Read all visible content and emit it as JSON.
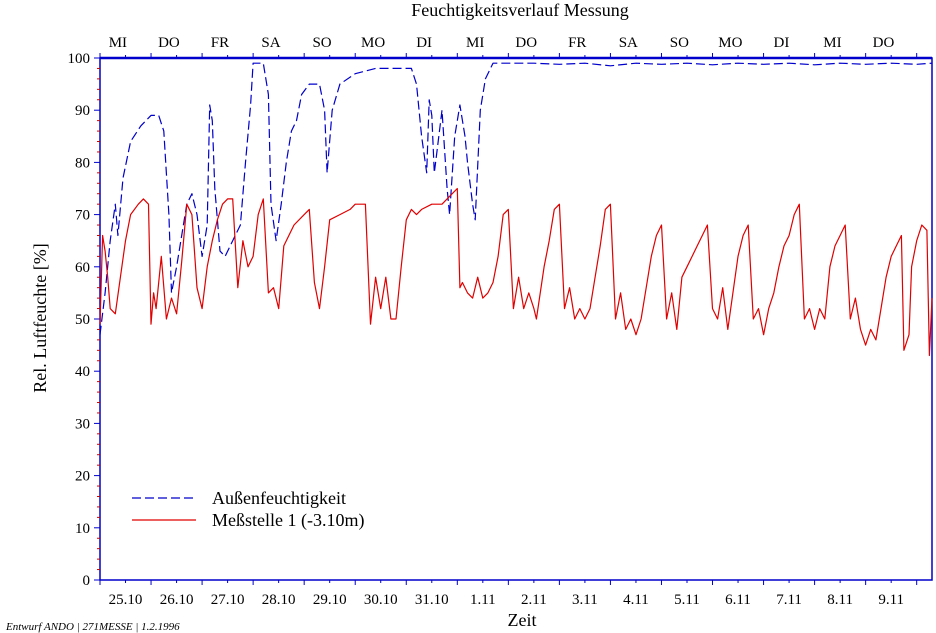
{
  "chart_data": {
    "type": "line",
    "title": "Feuchtigkeitsverlauf Messung",
    "xlabel": "Zeit",
    "ylabel": "Rel. Luftfeuchte [%]",
    "ylim": [
      0,
      100
    ],
    "xlim": [
      0,
      16.3
    ],
    "yticks": [
      0,
      10,
      20,
      30,
      40,
      50,
      60,
      70,
      80,
      90,
      100
    ],
    "top_day_labels": [
      {
        "day": 0.35,
        "label": "MI"
      },
      {
        "day": 1.35,
        "label": "DO"
      },
      {
        "day": 2.35,
        "label": "FR"
      },
      {
        "day": 3.35,
        "label": "SA"
      },
      {
        "day": 4.35,
        "label": "SO"
      },
      {
        "day": 5.35,
        "label": "MO"
      },
      {
        "day": 6.35,
        "label": "DI"
      },
      {
        "day": 7.35,
        "label": "MI"
      },
      {
        "day": 8.35,
        "label": "DO"
      },
      {
        "day": 9.35,
        "label": "FR"
      },
      {
        "day": 10.35,
        "label": "SA"
      },
      {
        "day": 11.35,
        "label": "SO"
      },
      {
        "day": 12.35,
        "label": "MO"
      },
      {
        "day": 13.35,
        "label": "DI"
      },
      {
        "day": 14.35,
        "label": "MI"
      },
      {
        "day": 15.35,
        "label": "DO"
      }
    ],
    "bottom_date_labels": [
      {
        "day": 0.5,
        "label": "25.10"
      },
      {
        "day": 1.5,
        "label": "26.10"
      },
      {
        "day": 2.5,
        "label": "27.10"
      },
      {
        "day": 3.5,
        "label": "28.10"
      },
      {
        "day": 4.5,
        "label": "29.10"
      },
      {
        "day": 5.5,
        "label": "30.10"
      },
      {
        "day": 6.5,
        "label": "31.10"
      },
      {
        "day": 7.5,
        "label": "1.11"
      },
      {
        "day": 8.5,
        "label": "2.11"
      },
      {
        "day": 9.5,
        "label": "3.11"
      },
      {
        "day": 10.5,
        "label": "4.11"
      },
      {
        "day": 11.5,
        "label": "5.11"
      },
      {
        "day": 12.5,
        "label": "6.11"
      },
      {
        "day": 13.5,
        "label": "7.11"
      },
      {
        "day": 14.5,
        "label": "8.11"
      },
      {
        "day": 15.5,
        "label": "9.11"
      }
    ],
    "legend_position": "bottom-left",
    "series": [
      {
        "name": "Außenfeuchtigkeit",
        "color": "#0000cc",
        "dash": "dashed",
        "points": [
          [
            0.0,
            47
          ],
          [
            0.1,
            55
          ],
          [
            0.2,
            65
          ],
          [
            0.3,
            72
          ],
          [
            0.35,
            66
          ],
          [
            0.45,
            77
          ],
          [
            0.6,
            84
          ],
          [
            0.8,
            87
          ],
          [
            1.0,
            89
          ],
          [
            1.15,
            89
          ],
          [
            1.25,
            86
          ],
          [
            1.35,
            70
          ],
          [
            1.4,
            55
          ],
          [
            1.5,
            60
          ],
          [
            1.6,
            66
          ],
          [
            1.7,
            72
          ],
          [
            1.8,
            74
          ],
          [
            1.9,
            70
          ],
          [
            2.0,
            62
          ],
          [
            2.1,
            68
          ],
          [
            2.15,
            91
          ],
          [
            2.2,
            88
          ],
          [
            2.25,
            75
          ],
          [
            2.35,
            63
          ],
          [
            2.45,
            62
          ],
          [
            2.6,
            65
          ],
          [
            2.75,
            68
          ],
          [
            2.85,
            80
          ],
          [
            2.95,
            91
          ],
          [
            3.0,
            99
          ],
          [
            3.1,
            99
          ],
          [
            3.2,
            99
          ],
          [
            3.3,
            93
          ],
          [
            3.35,
            72
          ],
          [
            3.45,
            65
          ],
          [
            3.55,
            72
          ],
          [
            3.65,
            80
          ],
          [
            3.75,
            86
          ],
          [
            3.85,
            88
          ],
          [
            3.95,
            93
          ],
          [
            4.1,
            95
          ],
          [
            4.3,
            95
          ],
          [
            4.4,
            90
          ],
          [
            4.45,
            78
          ],
          [
            4.55,
            90
          ],
          [
            4.7,
            95
          ],
          [
            5.0,
            97
          ],
          [
            5.4,
            98
          ],
          [
            5.8,
            98
          ],
          [
            6.1,
            98
          ],
          [
            6.2,
            95
          ],
          [
            6.3,
            85
          ],
          [
            6.4,
            78
          ],
          [
            6.45,
            92
          ],
          [
            6.5,
            89
          ],
          [
            6.55,
            78
          ],
          [
            6.6,
            82
          ],
          [
            6.7,
            90
          ],
          [
            6.8,
            75
          ],
          [
            6.85,
            70
          ],
          [
            6.95,
            85
          ],
          [
            7.05,
            91
          ],
          [
            7.15,
            85
          ],
          [
            7.2,
            80
          ],
          [
            7.3,
            72
          ],
          [
            7.35,
            69
          ],
          [
            7.45,
            90
          ],
          [
            7.55,
            96
          ],
          [
            7.7,
            99
          ],
          [
            8.0,
            99
          ],
          [
            8.5,
            99
          ],
          [
            9.0,
            98.8
          ],
          [
            9.5,
            99
          ],
          [
            10.0,
            98.5
          ],
          [
            10.5,
            99
          ],
          [
            11.0,
            98.8
          ],
          [
            11.5,
            99
          ],
          [
            12.0,
            98.7
          ],
          [
            12.5,
            99
          ],
          [
            13.0,
            98.8
          ],
          [
            13.5,
            99
          ],
          [
            14.0,
            98.7
          ],
          [
            14.5,
            99
          ],
          [
            15.0,
            98.8
          ],
          [
            15.5,
            99
          ],
          [
            16.0,
            98.8
          ],
          [
            16.3,
            99
          ]
        ]
      },
      {
        "name": "Meßstelle 1 (-3.10m)",
        "color": "#e00000",
        "dash": "solid",
        "points": [
          [
            0.0,
            49
          ],
          [
            0.05,
            66
          ],
          [
            0.1,
            63
          ],
          [
            0.15,
            58
          ],
          [
            0.2,
            52
          ],
          [
            0.3,
            51
          ],
          [
            0.4,
            58
          ],
          [
            0.5,
            65
          ],
          [
            0.6,
            70
          ],
          [
            0.75,
            72
          ],
          [
            0.85,
            73
          ],
          [
            0.95,
            72
          ],
          [
            1.0,
            49
          ],
          [
            1.05,
            55
          ],
          [
            1.1,
            52
          ],
          [
            1.2,
            62
          ],
          [
            1.3,
            50
          ],
          [
            1.4,
            54
          ],
          [
            1.5,
            51
          ],
          [
            1.6,
            61
          ],
          [
            1.7,
            72
          ],
          [
            1.8,
            70
          ],
          [
            1.9,
            56
          ],
          [
            2.0,
            52
          ],
          [
            2.1,
            60
          ],
          [
            2.2,
            65
          ],
          [
            2.3,
            69
          ],
          [
            2.4,
            72
          ],
          [
            2.5,
            73
          ],
          [
            2.6,
            73
          ],
          [
            2.7,
            56
          ],
          [
            2.8,
            65
          ],
          [
            2.9,
            60
          ],
          [
            3.0,
            62
          ],
          [
            3.1,
            70
          ],
          [
            3.2,
            73
          ],
          [
            3.3,
            55
          ],
          [
            3.4,
            56
          ],
          [
            3.5,
            52
          ],
          [
            3.6,
            64
          ],
          [
            3.8,
            68
          ],
          [
            4.0,
            70
          ],
          [
            4.1,
            71
          ],
          [
            4.2,
            57
          ],
          [
            4.3,
            52
          ],
          [
            4.4,
            60
          ],
          [
            4.5,
            69
          ],
          [
            4.7,
            70
          ],
          [
            4.9,
            71
          ],
          [
            5.0,
            72
          ],
          [
            5.2,
            72
          ],
          [
            5.3,
            49
          ],
          [
            5.4,
            58
          ],
          [
            5.5,
            52
          ],
          [
            5.6,
            58
          ],
          [
            5.7,
            50
          ],
          [
            5.8,
            50
          ],
          [
            5.9,
            60
          ],
          [
            6.0,
            69
          ],
          [
            6.1,
            71
          ],
          [
            6.2,
            70
          ],
          [
            6.3,
            71
          ],
          [
            6.5,
            72
          ],
          [
            6.7,
            72
          ],
          [
            6.9,
            74
          ],
          [
            7.0,
            75
          ],
          [
            7.05,
            56
          ],
          [
            7.1,
            57
          ],
          [
            7.2,
            55
          ],
          [
            7.3,
            54
          ],
          [
            7.4,
            58
          ],
          [
            7.5,
            54
          ],
          [
            7.6,
            55
          ],
          [
            7.7,
            57
          ],
          [
            7.8,
            62
          ],
          [
            7.9,
            70
          ],
          [
            8.0,
            71
          ],
          [
            8.1,
            52
          ],
          [
            8.2,
            58
          ],
          [
            8.3,
            52
          ],
          [
            8.4,
            55
          ],
          [
            8.5,
            52
          ],
          [
            8.55,
            50
          ],
          [
            8.7,
            60
          ],
          [
            8.8,
            65
          ],
          [
            8.9,
            71
          ],
          [
            9.0,
            72
          ],
          [
            9.1,
            52
          ],
          [
            9.2,
            56
          ],
          [
            9.3,
            50
          ],
          [
            9.4,
            52
          ],
          [
            9.5,
            50
          ],
          [
            9.6,
            52
          ],
          [
            9.7,
            58
          ],
          [
            9.8,
            64
          ],
          [
            9.9,
            71
          ],
          [
            10.0,
            72
          ],
          [
            10.1,
            50
          ],
          [
            10.2,
            55
          ],
          [
            10.3,
            48
          ],
          [
            10.4,
            50
          ],
          [
            10.5,
            47
          ],
          [
            10.6,
            50
          ],
          [
            10.7,
            56
          ],
          [
            10.8,
            62
          ],
          [
            10.9,
            66
          ],
          [
            11.0,
            68
          ],
          [
            11.1,
            50
          ],
          [
            11.2,
            55
          ],
          [
            11.3,
            48
          ],
          [
            11.4,
            58
          ],
          [
            11.5,
            60
          ],
          [
            11.6,
            62
          ],
          [
            11.7,
            64
          ],
          [
            11.8,
            66
          ],
          [
            11.9,
            68
          ],
          [
            12.0,
            52
          ],
          [
            12.1,
            50
          ],
          [
            12.2,
            56
          ],
          [
            12.3,
            48
          ],
          [
            12.4,
            55
          ],
          [
            12.5,
            62
          ],
          [
            12.6,
            66
          ],
          [
            12.7,
            68
          ],
          [
            12.8,
            50
          ],
          [
            12.9,
            52
          ],
          [
            13.0,
            47
          ],
          [
            13.1,
            52
          ],
          [
            13.2,
            55
          ],
          [
            13.3,
            60
          ],
          [
            13.4,
            64
          ],
          [
            13.5,
            66
          ],
          [
            13.6,
            70
          ],
          [
            13.7,
            72
          ],
          [
            13.8,
            50
          ],
          [
            13.9,
            52
          ],
          [
            14.0,
            48
          ],
          [
            14.1,
            52
          ],
          [
            14.2,
            50
          ],
          [
            14.3,
            60
          ],
          [
            14.4,
            64
          ],
          [
            14.5,
            66
          ],
          [
            14.6,
            68
          ],
          [
            14.7,
            50
          ],
          [
            14.8,
            54
          ],
          [
            14.9,
            48
          ],
          [
            15.0,
            45
          ],
          [
            15.1,
            48
          ],
          [
            15.2,
            46
          ],
          [
            15.3,
            52
          ],
          [
            15.4,
            58
          ],
          [
            15.5,
            62
          ],
          [
            15.6,
            64
          ],
          [
            15.7,
            66
          ],
          [
            15.75,
            44
          ],
          [
            15.85,
            47
          ],
          [
            15.9,
            60
          ],
          [
            16.0,
            65
          ],
          [
            16.1,
            68
          ],
          [
            16.2,
            67
          ],
          [
            16.25,
            43
          ],
          [
            16.3,
            54
          ]
        ]
      }
    ]
  },
  "footer": {
    "note": "Entwurf ANDO | 271MESSE | 1.2.1996"
  }
}
